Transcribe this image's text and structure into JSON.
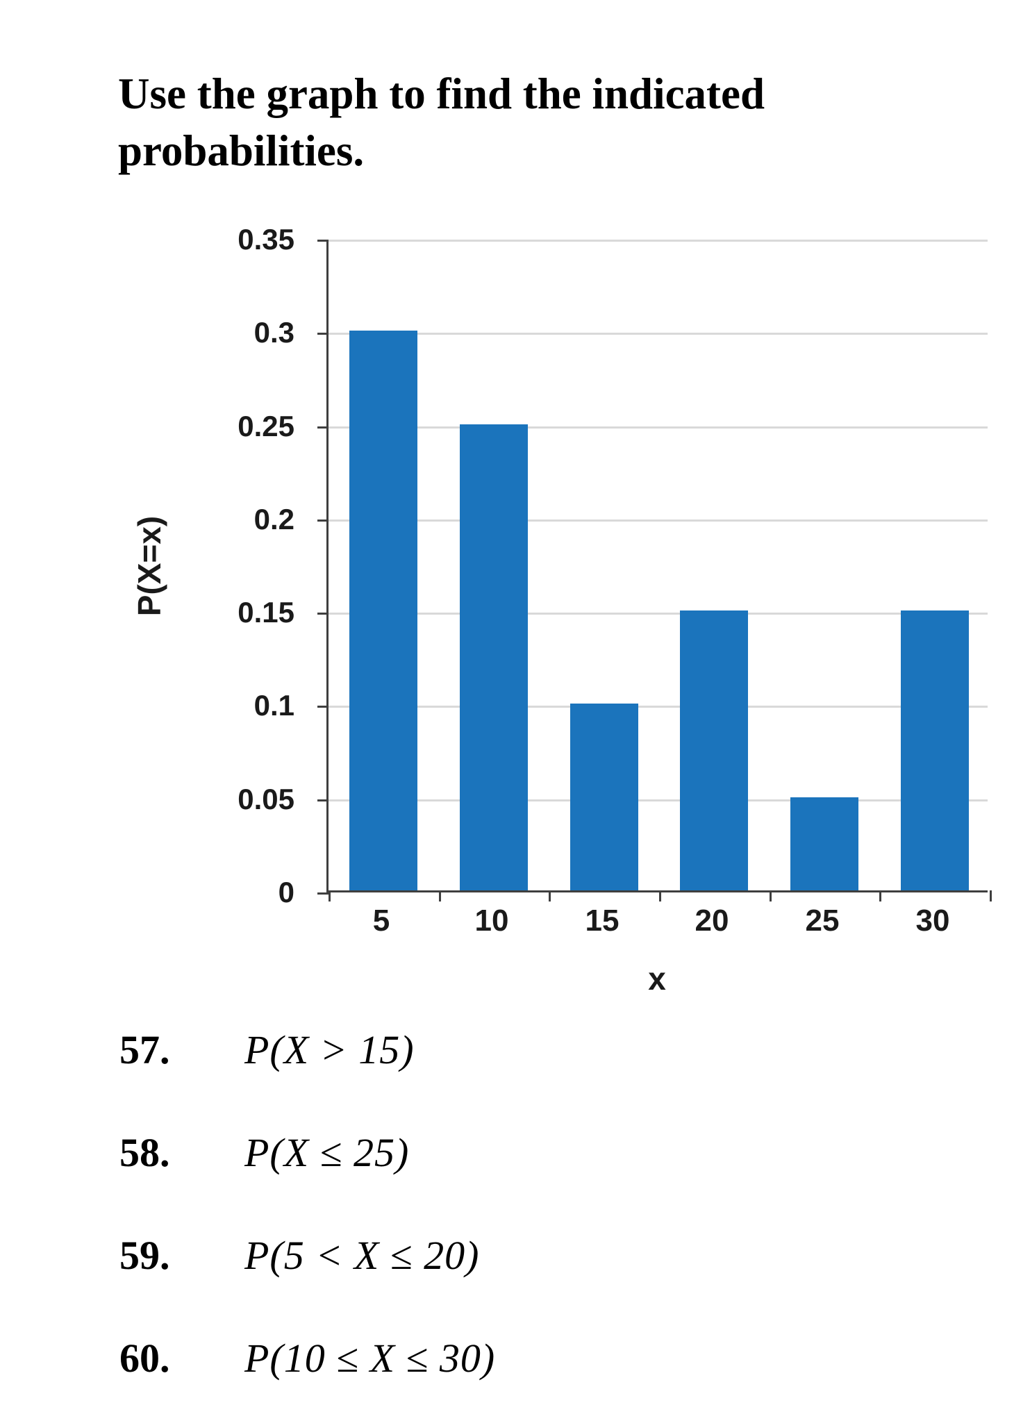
{
  "title": "Use the graph to find the indicated probabilities.",
  "chart_data": {
    "type": "bar",
    "categories": [
      "5",
      "10",
      "15",
      "20",
      "25",
      "30"
    ],
    "values": [
      0.3,
      0.25,
      0.1,
      0.15,
      0.05,
      0.15
    ],
    "title": "",
    "xlabel": "x",
    "ylabel": "P(X=x)",
    "ylim": [
      0,
      0.35
    ],
    "ytick_step": 0.05,
    "yticks": [
      "0",
      "0.05",
      "0.1",
      "0.15",
      "0.2",
      "0.25",
      "0.3",
      "0.35"
    ],
    "grid": true,
    "legend": false,
    "bar_color": "#1b74bc",
    "gridline_color": "#d9d9d9",
    "axis_color": "#3f3f3f"
  },
  "questions": [
    {
      "number": "57.",
      "expression": "P(X > 15)"
    },
    {
      "number": "58.",
      "expression": "P(X ≤ 25)"
    },
    {
      "number": "59.",
      "expression": "P(5 < X ≤ 20)"
    },
    {
      "number": "60.",
      "expression": "P(10 ≤ X ≤ 30)"
    }
  ]
}
